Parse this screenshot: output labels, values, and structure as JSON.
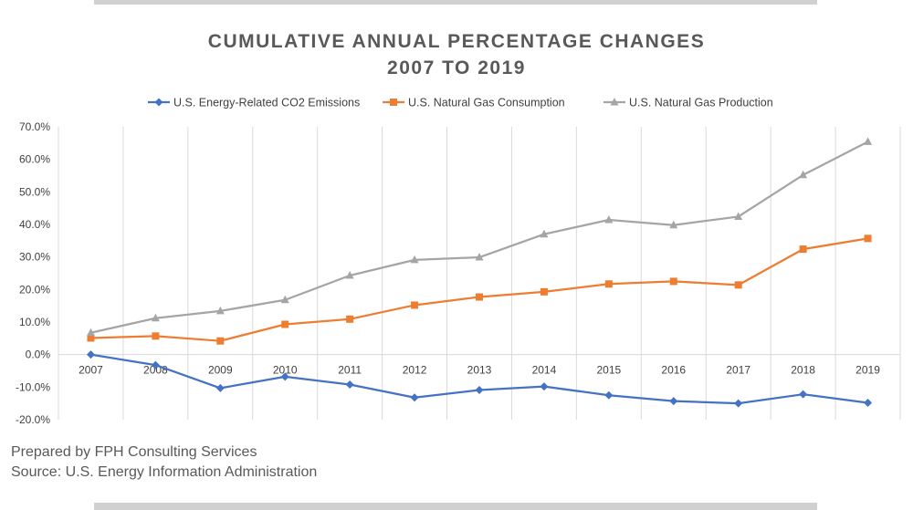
{
  "title_line1": "CUMULATIVE ANNUAL PERCENTAGE CHANGES",
  "title_line2": "2007 TO 2019",
  "footer": {
    "line1": "Prepared by FPH Consulting Services",
    "line2": "Source: U.S. Energy Information Administration"
  },
  "chart_data": {
    "type": "line",
    "x": [
      "2007",
      "2008",
      "2009",
      "2010",
      "2011",
      "2012",
      "2013",
      "2014",
      "2015",
      "2016",
      "2017",
      "2018",
      "2019"
    ],
    "ylim": [
      -20,
      70
    ],
    "ytick_labels": [
      "-20.0%",
      "-10.0%",
      "0.0%",
      "10.0%",
      "20.0%",
      "30.0%",
      "40.0%",
      "50.0%",
      "60.0%",
      "70.0%"
    ],
    "grid": "vertical",
    "legend_position": "top",
    "series": [
      {
        "name": "U.S. Energy-Related CO2 Emissions",
        "color": "#4472c4",
        "marker": "diamond",
        "values": [
          0,
          -3.2,
          -10.3,
          -6.8,
          -9.2,
          -13.2,
          -10.9,
          -9.8,
          -12.5,
          -14.3,
          -15.0,
          -12.2,
          -14.8
        ]
      },
      {
        "name": "U.S. Natural Gas Consumption",
        "color": "#ed7d31",
        "marker": "square",
        "values": [
          5.1,
          5.7,
          4.2,
          9.3,
          10.9,
          15.2,
          17.7,
          19.3,
          21.7,
          22.5,
          21.4,
          32.4,
          35.7
        ]
      },
      {
        "name": "U.S. Natural Gas Production",
        "color": "#a5a5a5",
        "marker": "triangle",
        "values": [
          6.7,
          11.2,
          13.4,
          16.8,
          24.3,
          29.1,
          29.9,
          37.0,
          41.4,
          39.8,
          42.4,
          55.2,
          65.4
        ]
      }
    ]
  }
}
